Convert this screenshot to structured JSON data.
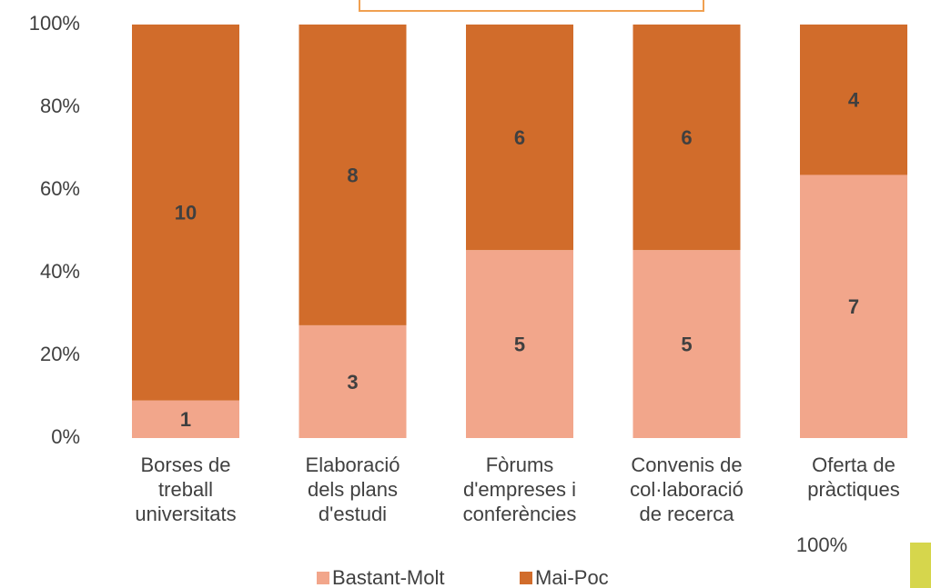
{
  "chart_data": {
    "type": "bar",
    "stacking": "percent",
    "categories": [
      "Borses de\ntreball\nuniversitats",
      "Elaboració\ndels plans\nd'estudi",
      "Fòrums\nd'empreses i\nconferències",
      "Convenis de\ncol·laboració\nde recerca",
      "Oferta de\npràctiques"
    ],
    "series": [
      {
        "name": "Bastant-Molt",
        "color": "#f2a68b",
        "values": [
          1,
          3,
          5,
          5,
          7
        ]
      },
      {
        "name": "Mai-Poc",
        "color": "#d16c2b",
        "values": [
          10,
          8,
          6,
          6,
          4
        ]
      }
    ],
    "ylim": [
      0,
      100
    ],
    "yticks": [
      {
        "value": 0,
        "label": "0%"
      },
      {
        "value": 20,
        "label": "20%"
      },
      {
        "value": 40,
        "label": "40%"
      },
      {
        "value": 60,
        "label": "60%"
      },
      {
        "value": 80,
        "label": "80%"
      },
      {
        "value": 100,
        "label": "100%"
      }
    ],
    "grid": false,
    "legend": "bottom",
    "annotations": [
      "100%"
    ]
  }
}
